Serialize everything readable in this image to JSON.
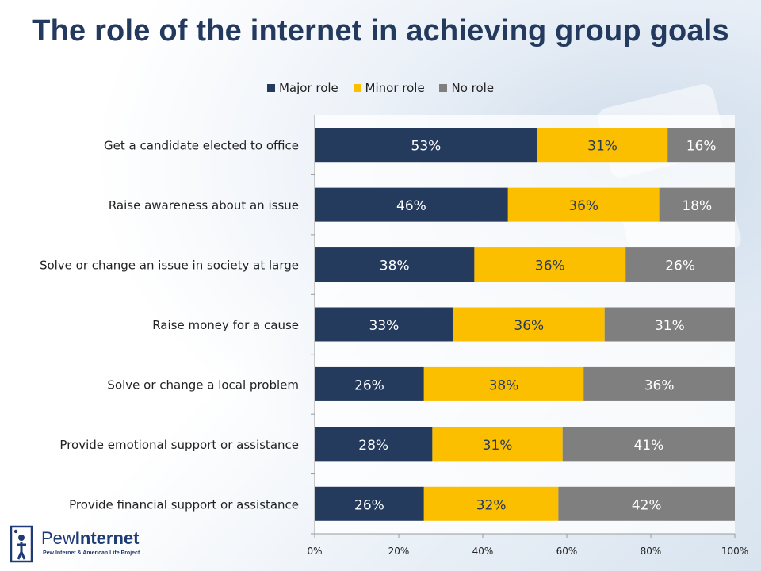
{
  "colors": {
    "major": "#243b5e",
    "minor": "#fbbf00",
    "none": "#7f7f7f",
    "title": "#23395d"
  },
  "chart_data": {
    "type": "bar",
    "orientation": "horizontal",
    "stacked": true,
    "title": "The role of the internet in achieving group goals",
    "legend_position": "top",
    "grid": false,
    "xlim": [
      0,
      100
    ],
    "x_ticks": [
      "0%",
      "20%",
      "40%",
      "60%",
      "80%",
      "100%"
    ],
    "categories": [
      "Get a candidate elected to office",
      "Raise awareness about an issue",
      "Solve or change an issue in society at large",
      "Raise money for a cause",
      "Solve or change a local problem",
      "Provide emotional support or assistance",
      "Provide financial support or assistance"
    ],
    "series": [
      {
        "name": "Major role",
        "values": [
          53,
          46,
          38,
          33,
          26,
          28,
          26
        ]
      },
      {
        "name": "Minor role",
        "values": [
          31,
          36,
          36,
          36,
          38,
          31,
          32
        ]
      },
      {
        "name": "No role",
        "values": [
          16,
          18,
          26,
          31,
          36,
          41,
          42
        ]
      }
    ]
  },
  "logo": {
    "name_light": "Pew",
    "name_bold": "Internet",
    "tagline": "Pew Internet & American Life Project",
    "icon": "pew-person-icon"
  }
}
